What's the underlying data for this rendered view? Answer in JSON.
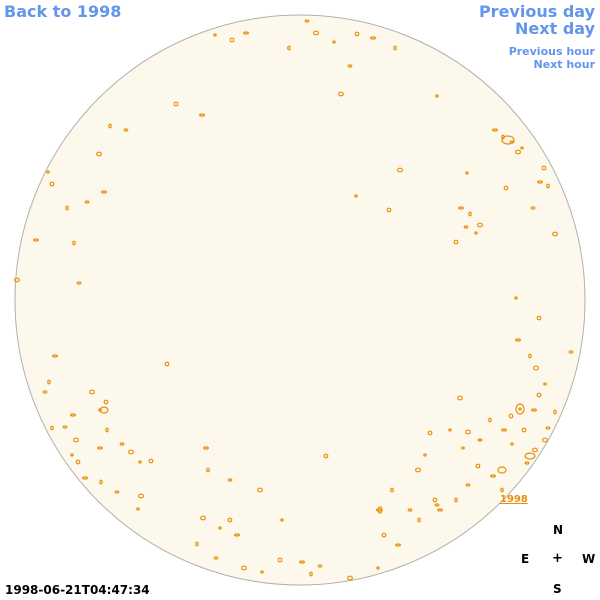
{
  "nav": {
    "back_label": "Back to 1998",
    "prev_day_label": "Previous day",
    "next_day_label": "Next day",
    "prev_hour_label": "Previous hour",
    "next_hour_label": "Next hour"
  },
  "disk": {
    "fill_color": "#fdf8ec",
    "outline_color": "#b0b0b0",
    "feature_color": "#e8900c"
  },
  "year_label": "1998",
  "compass": {
    "north": "N",
    "east": "E",
    "center": "+",
    "west": "W",
    "south": "S"
  },
  "timestamp": "1998-06-21T04:47:34"
}
